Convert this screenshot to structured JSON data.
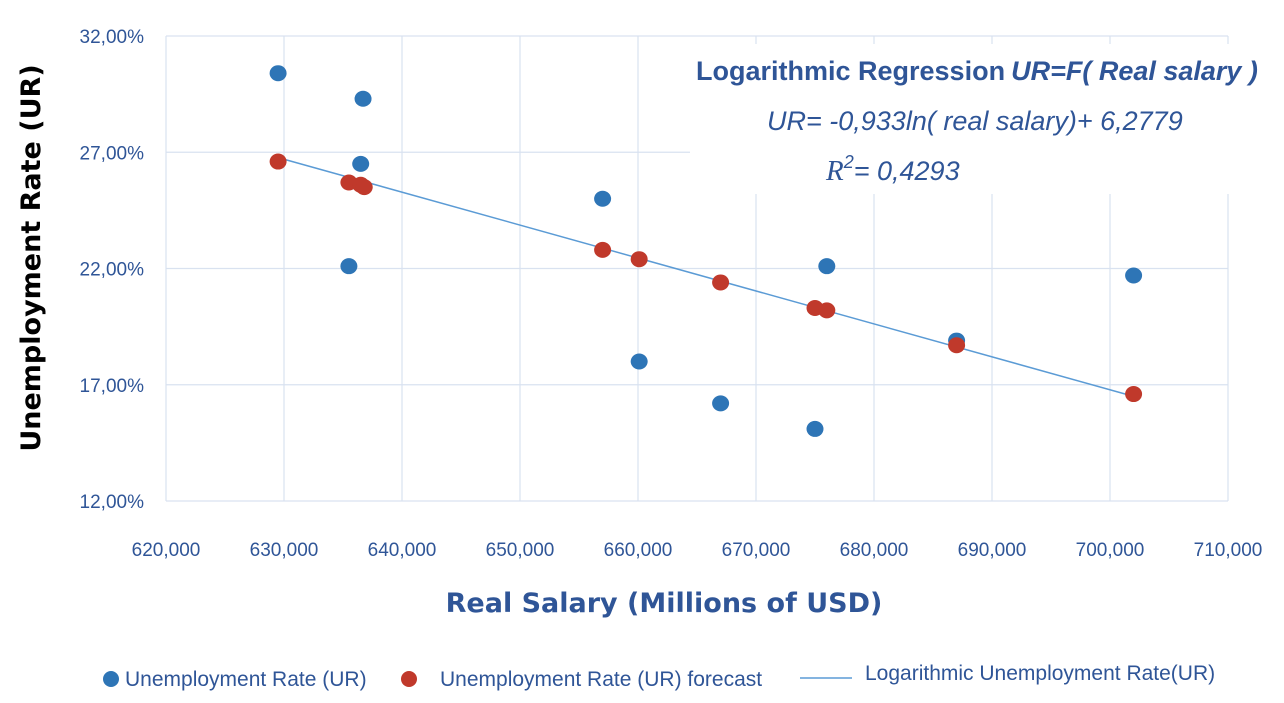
{
  "chart_data": {
    "type": "scatter",
    "xlabel": "Real Salary (Millions of USD)",
    "ylabel": "Unemployment Rate (UR)",
    "xlim": [
      620000,
      710000
    ],
    "ylim": [
      0.12,
      0.32
    ],
    "x_ticks": [
      620000,
      630000,
      640000,
      650000,
      660000,
      670000,
      680000,
      690000,
      700000,
      710000
    ],
    "x_tick_labels": [
      "620,000",
      "630,000",
      "640,000",
      "650,000",
      "660,000",
      "670,000",
      "680,000",
      "690,000",
      "700,000",
      "710,000"
    ],
    "y_ticks": [
      0.12,
      0.17,
      0.22,
      0.27,
      0.32
    ],
    "y_tick_labels": [
      "12,00%",
      "17,00%",
      "22,00%",
      "27,00%",
      "32,00%"
    ],
    "grid": true,
    "legend_position": "bottom",
    "series": [
      {
        "name": "Unemployment Rate (UR)",
        "kind": "scatter",
        "color": "#2E75B6",
        "points": [
          [
            629500,
            0.304
          ],
          [
            636700,
            0.293
          ],
          [
            636500,
            0.265
          ],
          [
            635500,
            0.221
          ],
          [
            657000,
            0.25
          ],
          [
            660100,
            0.18
          ],
          [
            667000,
            0.162
          ],
          [
            675000,
            0.151
          ],
          [
            676000,
            0.221
          ],
          [
            687000,
            0.189
          ],
          [
            702000,
            0.217
          ]
        ]
      },
      {
        "name": "Unemployment Rate (UR) forecast",
        "kind": "scatter",
        "color": "#C0392B",
        "points": [
          [
            629500,
            0.266
          ],
          [
            635500,
            0.257
          ],
          [
            636500,
            0.256
          ],
          [
            636800,
            0.255
          ],
          [
            657000,
            0.228
          ],
          [
            660100,
            0.224
          ],
          [
            667000,
            0.214
          ],
          [
            675000,
            0.203
          ],
          [
            676000,
            0.202
          ],
          [
            687000,
            0.187
          ],
          [
            702000,
            0.166
          ]
        ]
      },
      {
        "name": "Logarithmic Unemployment Rate(UR)",
        "kind": "line",
        "color": "#5B9BD5",
        "points": [
          [
            630000,
            0.267
          ],
          [
            702000,
            0.165
          ]
        ]
      }
    ],
    "annotations": {
      "title_prefix": "Logarithmic Regression",
      "title_formula": "UR=F( Real salary )",
      "equation": "UR= -0,933ln( real salary)+ 6,2779",
      "r2_label": "R",
      "r2_sup": "2",
      "r2_value": "= 0,4293"
    }
  }
}
